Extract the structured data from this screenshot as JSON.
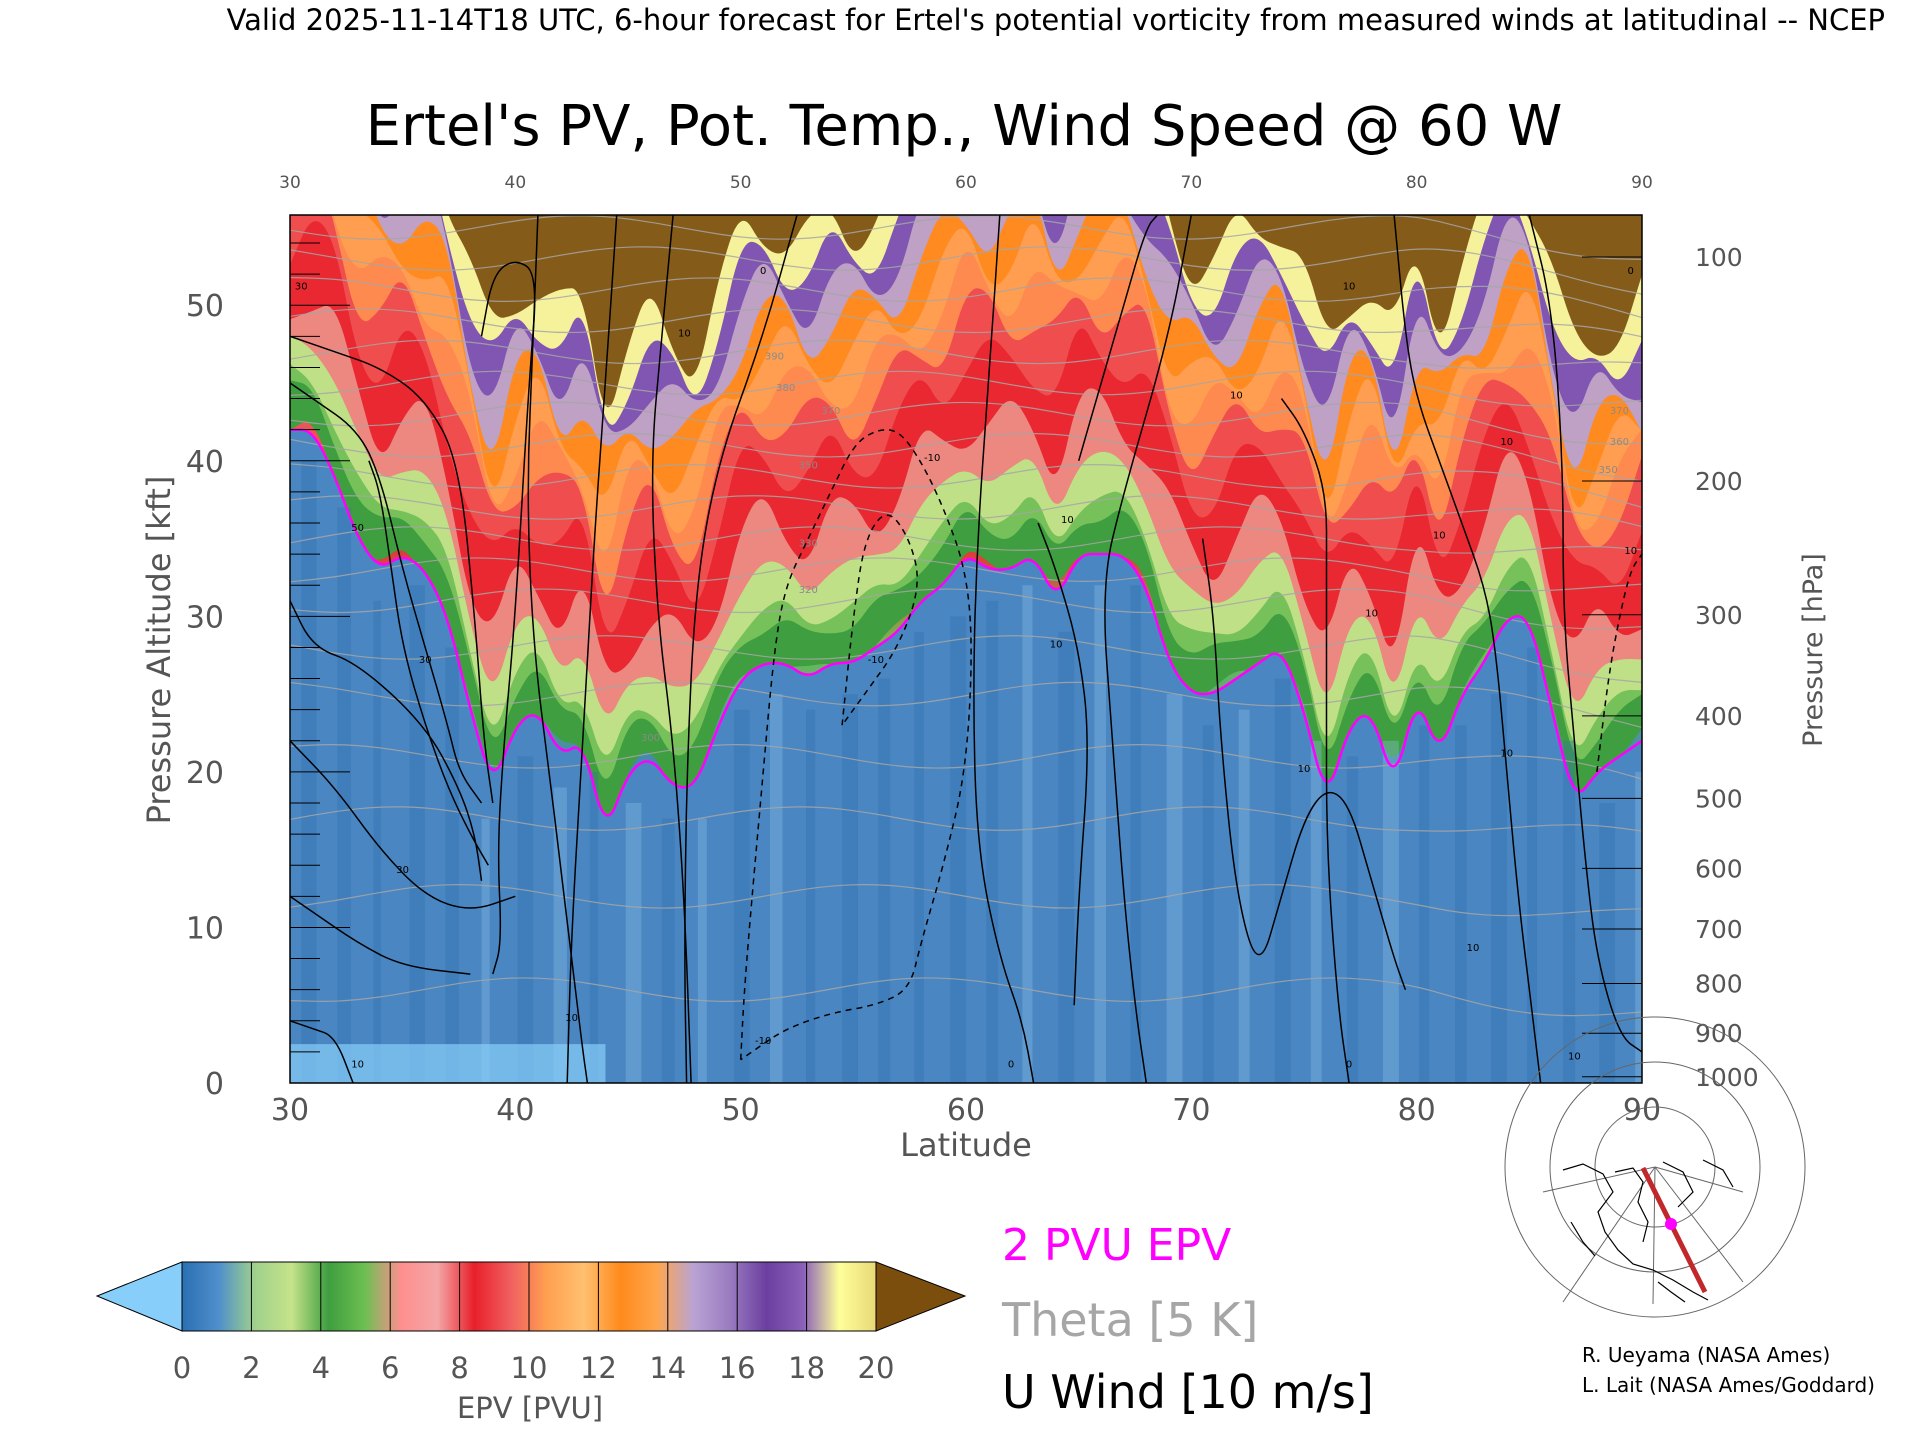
{
  "header": "Valid 2025-11-14T18 UTC, 6-hour forecast for Ertel's potential vorticity from measured winds at latitudinal -- NCEP",
  "chart_data": {
    "type": "heatmap",
    "title": "Ertel's PV, Pot. Temp., Wind Speed @ 60 W",
    "xlabel": "Latitude",
    "ylabel": "Pressure Altitude [kft]",
    "y2label": "Pressure [hPa]",
    "xlim": [
      30,
      90
    ],
    "ylim": [
      0,
      55.8
    ],
    "x_ticks": [
      30,
      40,
      50,
      60,
      70,
      80,
      90
    ],
    "y_ticks": [
      0,
      10,
      20,
      30,
      40,
      50
    ],
    "pressure_ticks": [
      {
        "label": "100",
        "kft": 53.1
      },
      {
        "label": "200",
        "kft": 38.7
      },
      {
        "label": "300",
        "kft": 30.1
      },
      {
        "label": "400",
        "kft": 23.6
      },
      {
        "label": "500",
        "kft": 18.3
      },
      {
        "label": "600",
        "kft": 13.8
      },
      {
        "label": "700",
        "kft": 9.9
      },
      {
        "label": "800",
        "kft": 6.4
      },
      {
        "label": "900",
        "kft": 3.2
      },
      {
        "label": "1000",
        "kft": 0.4
      }
    ],
    "tropopause_2pvu_kft": {
      "lat": [
        30,
        31,
        32,
        33,
        34,
        35,
        36,
        37,
        38,
        39,
        40,
        41,
        42,
        43,
        44,
        45,
        46,
        47,
        48,
        49,
        50,
        51,
        52,
        53,
        54,
        55,
        56,
        57,
        58,
        59,
        60,
        61,
        62,
        63,
        64,
        65,
        66,
        67,
        68,
        69,
        70,
        71,
        72,
        73,
        74,
        75,
        76,
        77,
        78,
        79,
        80,
        81,
        82,
        83,
        84,
        85,
        86,
        87,
        88,
        89,
        90
      ],
      "kft": [
        42,
        42,
        39,
        35,
        33,
        34,
        33,
        30,
        24,
        19,
        23,
        24,
        21,
        22,
        16,
        20,
        21,
        19,
        19,
        23,
        26,
        27,
        27,
        26,
        27,
        27,
        28,
        29,
        31,
        32,
        34,
        33,
        33,
        34,
        31,
        34,
        34,
        34,
        32,
        27,
        25,
        25,
        26,
        27,
        28,
        24,
        18,
        23,
        24,
        19,
        25,
        21,
        25,
        27,
        30,
        30,
        24,
        18,
        20,
        21,
        22
      ]
    },
    "pv_low_kft": [
      3,
      6,
      8,
      11,
      13,
      18,
      20,
      24,
      27,
      30,
      34,
      38,
      45,
      50,
      54
    ],
    "pv_levels": [
      2,
      3,
      4,
      5,
      6,
      7,
      8,
      9,
      10,
      12,
      14,
      16,
      17,
      18,
      20
    ],
    "theta_isentropes_kft": [
      6,
      12,
      17,
      21,
      25,
      28,
      31,
      33,
      35,
      37,
      39,
      41,
      43,
      45,
      47,
      49,
      51,
      53,
      55
    ],
    "theta_labels": [
      {
        "text": "300",
        "lat": 46,
        "kft": 22
      },
      {
        "text": "320",
        "lat": 53,
        "kft": 31.5
      },
      {
        "text": "330",
        "lat": 53,
        "kft": 34.5
      },
      {
        "text": "350",
        "lat": 53,
        "kft": 39.5
      },
      {
        "text": "370",
        "lat": 54,
        "kft": 43
      },
      {
        "text": "380",
        "lat": 52,
        "kft": 44.5
      },
      {
        "text": "390",
        "lat": 51.5,
        "kft": 46.5
      },
      {
        "text": "370",
        "lat": 89,
        "kft": 43
      },
      {
        "text": "360",
        "lat": 89,
        "kft": 41
      },
      {
        "text": "350",
        "lat": 88.5,
        "kft": 39.2
      }
    ],
    "u_wind_contours": [
      {
        "dashed": false,
        "points": [
          [
            30,
            45
          ],
          [
            31,
            44
          ],
          [
            33,
            42
          ],
          [
            34,
            39
          ],
          [
            35,
            33
          ],
          [
            36,
            28
          ],
          [
            37,
            23
          ],
          [
            37.5,
            20
          ],
          [
            38.5,
            18
          ]
        ]
      },
      {
        "dashed": false,
        "points": [
          [
            30,
            48
          ],
          [
            32,
            47
          ],
          [
            34,
            46
          ],
          [
            36,
            44
          ],
          [
            37.5,
            40
          ],
          [
            38.2,
            30
          ],
          [
            38.6,
            22
          ],
          [
            39,
            18
          ]
        ]
      },
      {
        "dashed": false,
        "points": [
          [
            33.5,
            40
          ],
          [
            34,
            38
          ],
          [
            34.5,
            33
          ],
          [
            35,
            28
          ],
          [
            36,
            23
          ],
          [
            37,
            19
          ],
          [
            38,
            16
          ],
          [
            38.8,
            14
          ]
        ]
      },
      {
        "dashed": false,
        "points": [
          [
            30,
            31
          ],
          [
            31,
            28
          ],
          [
            33,
            27
          ],
          [
            36,
            23
          ],
          [
            37.5,
            19
          ],
          [
            38.2,
            16
          ],
          [
            38.5,
            13
          ]
        ]
      },
      {
        "dashed": false,
        "points": [
          [
            30,
            22
          ],
          [
            32,
            19
          ],
          [
            34,
            15
          ],
          [
            36,
            12
          ],
          [
            38,
            11
          ],
          [
            40,
            12
          ]
        ]
      },
      {
        "dashed": false,
        "points": [
          [
            30,
            12
          ],
          [
            31,
            11
          ],
          [
            33,
            9
          ],
          [
            35,
            7.5
          ],
          [
            38,
            7
          ]
        ]
      },
      {
        "dashed": false,
        "points": [
          [
            30,
            4
          ],
          [
            31,
            3.5
          ],
          [
            32,
            3
          ],
          [
            32.8,
            0
          ]
        ]
      },
      {
        "dashed": false,
        "points": [
          [
            38.5,
            48
          ],
          [
            39,
            52
          ],
          [
            40,
            53
          ],
          [
            41,
            52
          ],
          [
            40.6,
            45
          ],
          [
            40,
            30
          ],
          [
            39.5,
            22
          ],
          [
            39.2,
            15
          ],
          [
            39.4,
            9
          ],
          [
            39,
            7
          ]
        ]
      },
      {
        "dashed": false,
        "points": [
          [
            41,
            55.8
          ],
          [
            40.8,
            48
          ],
          [
            40.5,
            38
          ],
          [
            40.8,
            28
          ],
          [
            41.5,
            20
          ],
          [
            42,
            14
          ],
          [
            42.5,
            8
          ],
          [
            43,
            2
          ],
          [
            43.2,
            0
          ]
        ]
      },
      {
        "dashed": false,
        "points": [
          [
            44.5,
            55.8
          ],
          [
            44,
            45
          ],
          [
            43.5,
            35
          ],
          [
            43,
            22
          ],
          [
            42.5,
            10
          ],
          [
            42.3,
            0
          ]
        ]
      },
      {
        "dashed": false,
        "points": [
          [
            47,
            55.8
          ],
          [
            46.5,
            48
          ],
          [
            46,
            40
          ],
          [
            46.3,
            30
          ],
          [
            47,
            22
          ],
          [
            47.5,
            12
          ],
          [
            47.8,
            0
          ]
        ]
      },
      {
        "dashed": false,
        "points": [
          [
            52.5,
            55.8
          ],
          [
            51,
            48
          ],
          [
            49,
            40
          ],
          [
            48,
            32
          ],
          [
            47.6,
            20
          ],
          [
            47.5,
            8
          ],
          [
            47.6,
            0
          ]
        ]
      },
      {
        "dashed": true,
        "points": [
          [
            50,
            1.5
          ],
          [
            50.2,
            7
          ],
          [
            51,
            20
          ],
          [
            51.5,
            28
          ],
          [
            52,
            32
          ],
          [
            53,
            35
          ],
          [
            54,
            38
          ],
          [
            55,
            41
          ],
          [
            56,
            42
          ],
          [
            57,
            42
          ],
          [
            58,
            40
          ],
          [
            59,
            37
          ],
          [
            60,
            33
          ],
          [
            60.3,
            28
          ],
          [
            60,
            20
          ],
          [
            59,
            14
          ],
          [
            58,
            9
          ],
          [
            57.5,
            6
          ],
          [
            56,
            5
          ],
          [
            54,
            4.5
          ],
          [
            52,
            3.5
          ],
          [
            50.5,
            2
          ],
          [
            50,
            1.5
          ]
        ]
      },
      {
        "dashed": true,
        "points": [
          [
            54.5,
            23
          ],
          [
            55,
            30
          ],
          [
            55.5,
            35
          ],
          [
            56.5,
            37
          ],
          [
            57.5,
            35
          ],
          [
            58,
            32
          ],
          [
            57,
            28
          ],
          [
            55.5,
            25
          ],
          [
            54.5,
            23
          ]
        ]
      },
      {
        "dashed": false,
        "points": [
          [
            61.5,
            55.8
          ],
          [
            61,
            45
          ],
          [
            60.5,
            35
          ],
          [
            60.3,
            25
          ],
          [
            60.5,
            15
          ],
          [
            61.5,
            8
          ],
          [
            62.5,
            4
          ],
          [
            63,
            0
          ]
        ]
      },
      {
        "dashed": false,
        "points": [
          [
            63.2,
            36
          ],
          [
            64,
            33
          ],
          [
            65,
            28
          ],
          [
            65.5,
            22
          ],
          [
            65,
            12
          ],
          [
            64.8,
            5
          ]
        ]
      },
      {
        "dashed": false,
        "points": [
          [
            65,
            40
          ],
          [
            66,
            45
          ],
          [
            67,
            50
          ],
          [
            68,
            55
          ],
          [
            68.5,
            55.8
          ]
        ]
      },
      {
        "dashed": false,
        "points": [
          [
            70,
            55.8
          ],
          [
            69,
            48
          ],
          [
            67,
            38
          ],
          [
            66,
            32
          ],
          [
            66.5,
            22
          ],
          [
            67,
            12
          ],
          [
            67.5,
            5
          ],
          [
            68,
            0
          ]
        ]
      },
      {
        "dashed": false,
        "points": [
          [
            70.5,
            35
          ],
          [
            71,
            30
          ],
          [
            71.3,
            22
          ],
          [
            72,
            12
          ],
          [
            73,
            7
          ],
          [
            74,
            12
          ],
          [
            75,
            17
          ],
          [
            76,
            19
          ],
          [
            77,
            18
          ],
          [
            78,
            13
          ],
          [
            79,
            8
          ],
          [
            79.5,
            6
          ]
        ]
      },
      {
        "dashed": false,
        "points": [
          [
            74,
            44
          ],
          [
            75,
            42
          ],
          [
            76,
            38
          ],
          [
            76,
            33
          ],
          [
            76,
            25
          ],
          [
            76,
            15
          ],
          [
            76.5,
            5
          ],
          [
            77,
            0
          ]
        ]
      },
      {
        "dashed": false,
        "points": [
          [
            79,
            55.8
          ],
          [
            79.5,
            48
          ],
          [
            80,
            44
          ],
          [
            81,
            40
          ],
          [
            82,
            36
          ],
          [
            83,
            32
          ],
          [
            83.5,
            28
          ],
          [
            84,
            20
          ],
          [
            84.5,
            12
          ],
          [
            85,
            6
          ],
          [
            85.5,
            0
          ]
        ]
      },
      {
        "dashed": false,
        "points": [
          [
            85,
            55.8
          ],
          [
            86,
            50
          ],
          [
            86.5,
            40
          ],
          [
            86.5,
            30
          ],
          [
            87,
            22
          ],
          [
            87.5,
            14
          ],
          [
            88,
            8
          ],
          [
            89,
            3
          ],
          [
            90,
            2
          ]
        ]
      },
      {
        "dashed": true,
        "points": [
          [
            88,
            20
          ],
          [
            88.5,
            26
          ],
          [
            89,
            30
          ],
          [
            89.5,
            33
          ],
          [
            90,
            34
          ]
        ]
      },
      {
        "dashed": false,
        "points": [
          [
            90,
            55
          ]
        ]
      }
    ],
    "wind_labels": [
      {
        "text": "30",
        "lat": 30.5,
        "kft": 51
      },
      {
        "text": "50",
        "lat": 33,
        "kft": 35.5
      },
      {
        "text": "30",
        "lat": 36,
        "kft": 27
      },
      {
        "text": "30",
        "lat": 35,
        "kft": 13.5
      },
      {
        "text": "10",
        "lat": 33,
        "kft": 1
      },
      {
        "text": "10",
        "lat": 42.5,
        "kft": 4
      },
      {
        "text": "10",
        "lat": 47.5,
        "kft": 48
      },
      {
        "text": "0",
        "lat": 51,
        "kft": 52
      },
      {
        "text": "-10",
        "lat": 51,
        "kft": 2.5
      },
      {
        "text": "-10",
        "lat": 56,
        "kft": 27
      },
      {
        "text": "-10",
        "lat": 58.5,
        "kft": 40
      },
      {
        "text": "0",
        "lat": 62,
        "kft": 1
      },
      {
        "text": "10",
        "lat": 64.5,
        "kft": 36
      },
      {
        "text": "10",
        "lat": 64,
        "kft": 28
      },
      {
        "text": "10",
        "lat": 72,
        "kft": 44
      },
      {
        "text": "10",
        "lat": 77,
        "kft": 51
      },
      {
        "text": "10",
        "lat": 75,
        "kft": 20
      },
      {
        "text": "10",
        "lat": 78,
        "kft": 30
      },
      {
        "text": "0",
        "lat": 77,
        "kft": 1
      },
      {
        "text": "10",
        "lat": 81,
        "kft": 35
      },
      {
        "text": "10",
        "lat": 84,
        "kft": 21
      },
      {
        "text": "10",
        "lat": 82.5,
        "kft": 8.5
      },
      {
        "text": "10",
        "lat": 84,
        "kft": 41
      },
      {
        "text": "0",
        "lat": 89.5,
        "kft": 52
      },
      {
        "text": "10",
        "lat": 89.5,
        "kft": 34
      },
      {
        "text": "10",
        "lat": 87,
        "kft": 1.5
      }
    ]
  },
  "colorbar": {
    "label": "EPV [PVU]",
    "ticks": [
      "0",
      "2",
      "4",
      "6",
      "8",
      "10",
      "12",
      "14",
      "16",
      "18",
      "20"
    ],
    "colors": [
      "#87cefa",
      "#2a6fb3",
      "#4f8fcb",
      "#9fd18c",
      "#c5e38a",
      "#3f9e3f",
      "#6cbf52",
      "#ff8f8f",
      "#f4a6a6",
      "#e8202a",
      "#f06060",
      "#ffa050",
      "#ffc070",
      "#ff8a1c",
      "#ffa64d",
      "#b9a3d3",
      "#9a7cc0",
      "#6b3fa0",
      "#8a60b8",
      "#ffff99",
      "#e8d878",
      "#7b4e0e"
    ]
  },
  "legend": {
    "pv": "2 PVU EPV",
    "theta": "Theta [5 K]",
    "wind": "U Wind [10 m/s]",
    "pv_color": "#ff00ff",
    "theta_color": "#a6a6a6",
    "wind_color": "#000000"
  },
  "credits": {
    "line1": "R. Ueyama (NASA Ames)",
    "line2": "L. Lait (NASA Ames/Goddard)"
  },
  "colors": {
    "stratosphere_red": "#e52a2a",
    "troposphere_blue": "#3c7fc0"
  }
}
